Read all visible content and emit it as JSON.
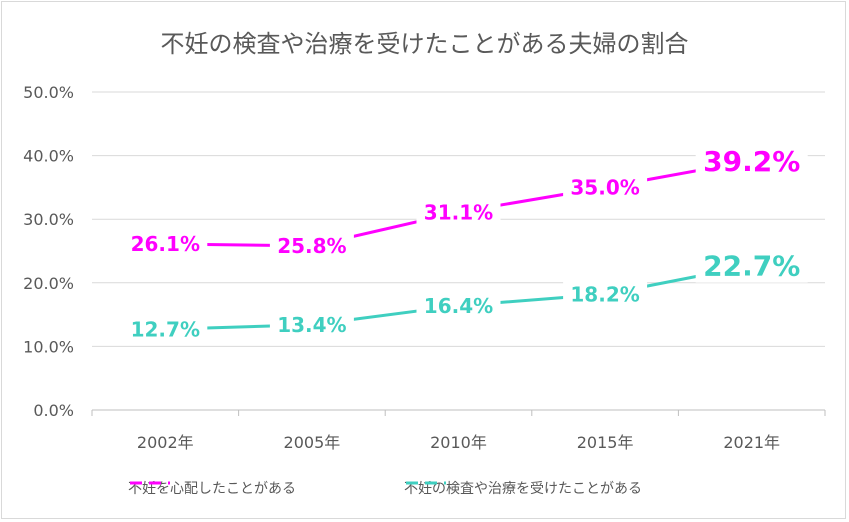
{
  "chart_data": {
    "type": "line",
    "title": "不妊の検査や治療を受けたことがある夫婦の割合",
    "categories": [
      "2002年",
      "2005年",
      "2010年",
      "2015年",
      "2021年"
    ],
    "ylim": [
      0,
      50
    ],
    "yticks": [
      "0.0%",
      "10.0%",
      "20.0%",
      "30.0%",
      "40.0%",
      "50.0%"
    ],
    "grid": true,
    "legend_position": "bottom",
    "series": [
      {
        "name": "不妊を心配したことがある",
        "values": [
          26.1,
          25.8,
          31.1,
          35.0,
          39.2
        ],
        "labels": [
          "26.1%",
          "25.8%",
          "31.1%",
          "35.0%",
          "39.2%"
        ],
        "color": "#ff00ff"
      },
      {
        "name": "不妊の検査や治療を受けたことがある",
        "values": [
          12.7,
          13.4,
          16.4,
          18.2,
          22.7
        ],
        "labels": [
          "12.7%",
          "13.4%",
          "16.4%",
          "18.2%",
          "22.7%"
        ],
        "color": "#3fcfc0"
      }
    ]
  }
}
